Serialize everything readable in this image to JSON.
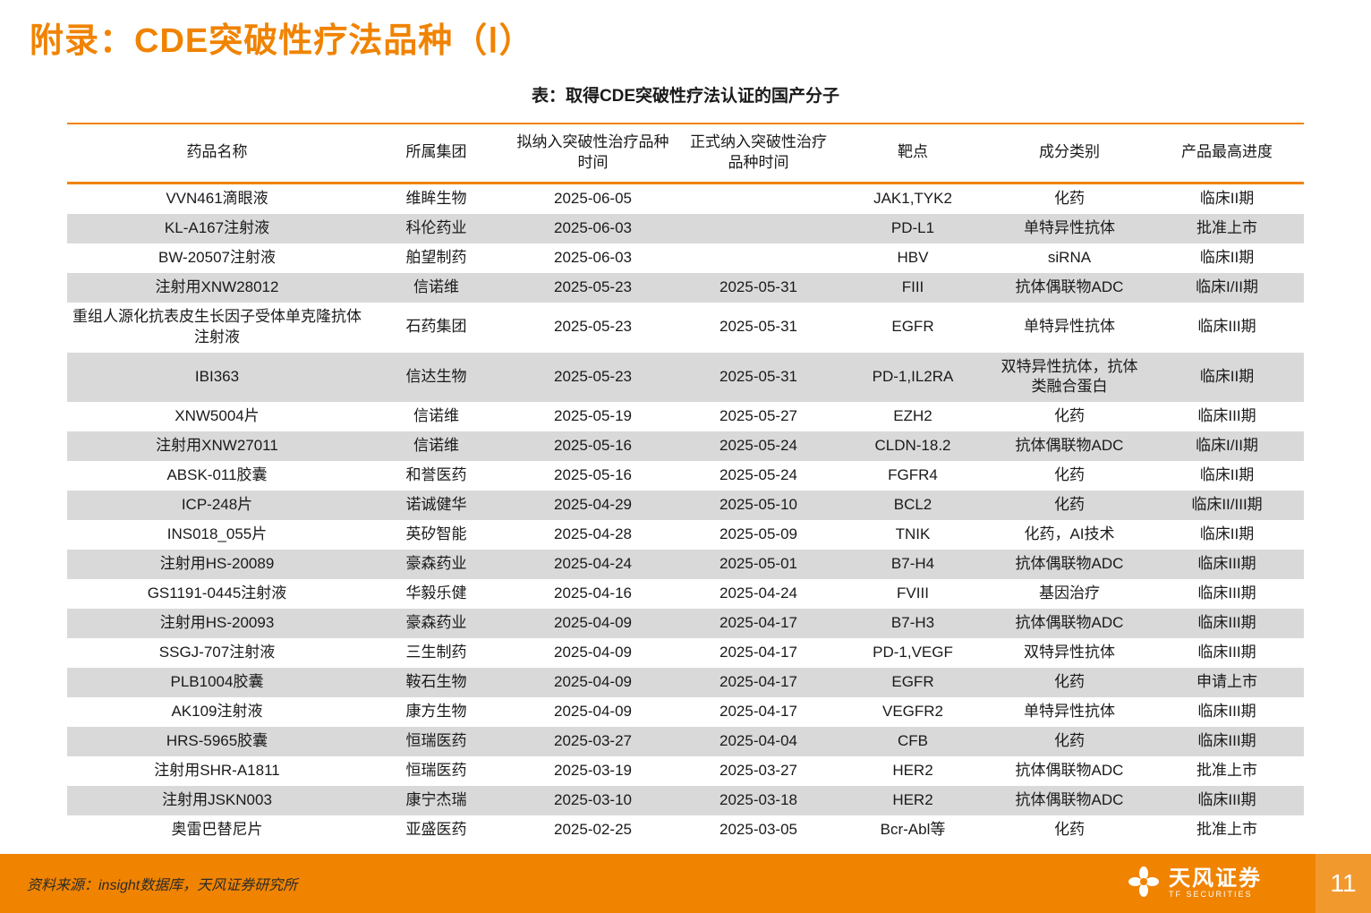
{
  "page": {
    "title": "附录：CDE突破性疗法品种（Ⅰ）",
    "page_number": "11",
    "source_note": "资料来源：insight数据库，天风证券研究所",
    "logo_cn": "天风证券",
    "logo_en": "TF SECURITIES"
  },
  "colors": {
    "accent_orange": "#f08300",
    "row_alt_gray": "#d9d9d9"
  },
  "table": {
    "caption": "表：取得CDE突破性疗法认证的国产分子",
    "headers": [
      "药品名称",
      "所属集团",
      "拟纳入突破性治疗品种时间",
      "正式纳入突破性治疗品种时间",
      "靶点",
      "成分类别",
      "产品最高进度"
    ],
    "rows": [
      [
        "VVN461滴眼液",
        "维眸生物",
        "2025-06-05",
        "",
        "JAK1,TYK2",
        "化药",
        "临床II期"
      ],
      [
        "KL-A167注射液",
        "科伦药业",
        "2025-06-03",
        "",
        "PD-L1",
        "单特异性抗体",
        "批准上市"
      ],
      [
        "BW-20507注射液",
        "舶望制药",
        "2025-06-03",
        "",
        "HBV",
        "siRNA",
        "临床II期"
      ],
      [
        "注射用XNW28012",
        "信诺维",
        "2025-05-23",
        "2025-05-31",
        "FIII",
        "抗体偶联物ADC",
        "临床I/II期"
      ],
      [
        "重组人源化抗表皮生长因子受体单克隆抗体注射液",
        "石药集团",
        "2025-05-23",
        "2025-05-31",
        "EGFR",
        "单特异性抗体",
        "临床III期"
      ],
      [
        "IBI363",
        "信达生物",
        "2025-05-23",
        "2025-05-31",
        "PD-1,IL2RA",
        "双特异性抗体，抗体类融合蛋白",
        "临床II期"
      ],
      [
        "XNW5004片",
        "信诺维",
        "2025-05-19",
        "2025-05-27",
        "EZH2",
        "化药",
        "临床III期"
      ],
      [
        "注射用XNW27011",
        "信诺维",
        "2025-05-16",
        "2025-05-24",
        "CLDN-18.2",
        "抗体偶联物ADC",
        "临床I/II期"
      ],
      [
        "ABSK-011胶囊",
        "和誉医药",
        "2025-05-16",
        "2025-05-24",
        "FGFR4",
        "化药",
        "临床II期"
      ],
      [
        "ICP-248片",
        "诺诚健华",
        "2025-04-29",
        "2025-05-10",
        "BCL2",
        "化药",
        "临床II/III期"
      ],
      [
        "INS018_055片",
        "英矽智能",
        "2025-04-28",
        "2025-05-09",
        "TNIK",
        "化药，AI技术",
        "临床II期"
      ],
      [
        "注射用HS-20089",
        "豪森药业",
        "2025-04-24",
        "2025-05-01",
        "B7-H4",
        "抗体偶联物ADC",
        "临床III期"
      ],
      [
        "GS1191-0445注射液",
        "华毅乐健",
        "2025-04-16",
        "2025-04-24",
        "FVIII",
        "基因治疗",
        "临床III期"
      ],
      [
        "注射用HS-20093",
        "豪森药业",
        "2025-04-09",
        "2025-04-17",
        "B7-H3",
        "抗体偶联物ADC",
        "临床III期"
      ],
      [
        "SSGJ-707注射液",
        "三生制药",
        "2025-04-09",
        "2025-04-17",
        "PD-1,VEGF",
        "双特异性抗体",
        "临床III期"
      ],
      [
        "PLB1004胶囊",
        "鞍石生物",
        "2025-04-09",
        "2025-04-17",
        "EGFR",
        "化药",
        "申请上市"
      ],
      [
        "AK109注射液",
        "康方生物",
        "2025-04-09",
        "2025-04-17",
        "VEGFR2",
        "单特异性抗体",
        "临床III期"
      ],
      [
        "HRS-5965胶囊",
        "恒瑞医药",
        "2025-03-27",
        "2025-04-04",
        "CFB",
        "化药",
        "临床III期"
      ],
      [
        "注射用SHR-A1811",
        "恒瑞医药",
        "2025-03-19",
        "2025-03-27",
        "HER2",
        "抗体偶联物ADC",
        "批准上市"
      ],
      [
        "注射用JSKN003",
        "康宁杰瑞",
        "2025-03-10",
        "2025-03-18",
        "HER2",
        "抗体偶联物ADC",
        "临床III期"
      ],
      [
        "奥雷巴替尼片",
        "亚盛医药",
        "2025-02-25",
        "2025-03-05",
        "Bcr-Abl等",
        "化药",
        "批准上市"
      ]
    ]
  }
}
